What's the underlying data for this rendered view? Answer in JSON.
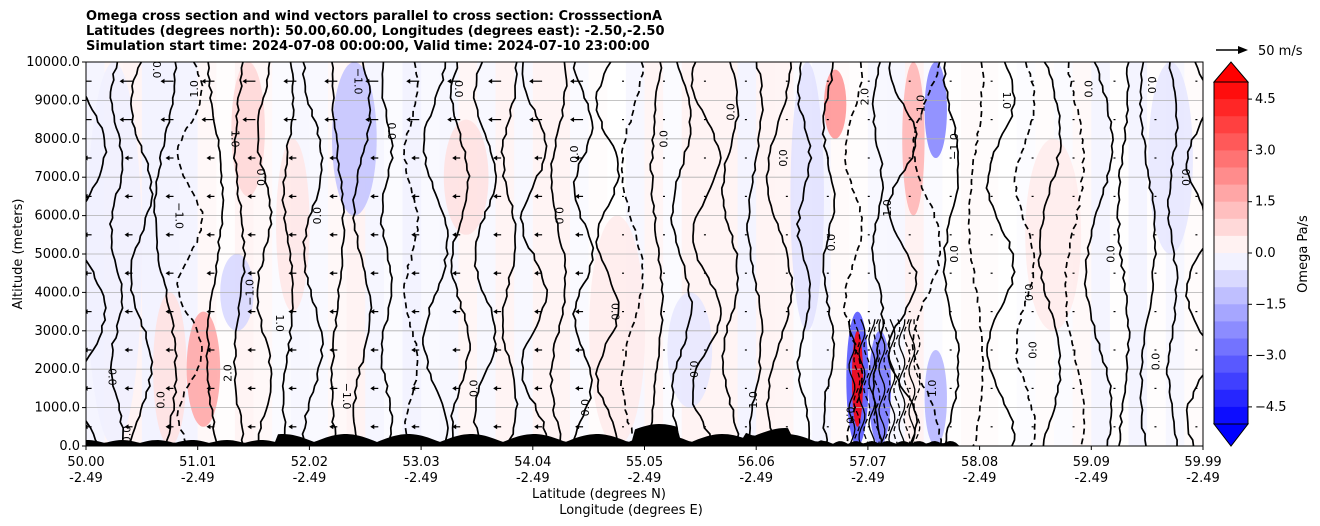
{
  "chart_data": {
    "type": "heatmap",
    "title_lines": [
      "Omega cross section and wind vectors parallel to cross section: CrosssectionA",
      "Latitudes (degrees north): 50.00,60.00, Longitudes (degrees east): -2.50,-2.50",
      "Simulation start time: 2024-07-08 00:00:00, Valid time: 2024-07-10 23:00:00"
    ],
    "ylabel": "Altitude (meters)",
    "xlabel_lines": [
      "Latitude (degrees N)",
      "Longitude (degrees E)"
    ],
    "ylim": [
      0,
      10000
    ],
    "y_ticks": [
      "0.0",
      "1000.0",
      "2000.0",
      "3000.0",
      "4000.0",
      "5000.0",
      "6000.0",
      "7000.0",
      "8000.0",
      "9000.0",
      "10000.0"
    ],
    "x_ticks": [
      {
        "lat": "50.00",
        "lon": "-2.49"
      },
      {
        "lat": "51.01",
        "lon": "-2.49"
      },
      {
        "lat": "52.02",
        "lon": "-2.49"
      },
      {
        "lat": "53.03",
        "lon": "-2.49"
      },
      {
        "lat": "54.04",
        "lon": "-2.49"
      },
      {
        "lat": "55.05",
        "lon": "-2.49"
      },
      {
        "lat": "56.06",
        "lon": "-2.49"
      },
      {
        "lat": "57.07",
        "lon": "-2.49"
      },
      {
        "lat": "58.08",
        "lon": "-2.49"
      },
      {
        "lat": "59.09",
        "lon": "-2.49"
      },
      {
        "lat": "59.99",
        "lon": "-2.49"
      }
    ],
    "colorbar": {
      "label": "Omega Pa/s",
      "ticks": [
        "4.5",
        "3.0",
        "1.5",
        "0.0",
        "−1.5",
        "−3.0",
        "−4.5"
      ],
      "range": [
        -5,
        5
      ],
      "low_color": "#0000ff",
      "high_color": "#ff0000"
    },
    "quiver_key": "50 m/s",
    "contour_labels": [
      "0.0",
      "1.0",
      "−1.0",
      "2.0",
      "−2.0"
    ],
    "regions": [
      {
        "x0": 50.0,
        "x1": 50.5,
        "y0": 0,
        "y1": 10000,
        "omega": -0.3
      },
      {
        "x0": 50.6,
        "x1": 50.9,
        "y0": 0,
        "y1": 4000,
        "omega": 0.6
      },
      {
        "x0": 50.9,
        "x1": 51.2,
        "y0": 500,
        "y1": 3500,
        "omega": 1.8
      },
      {
        "x0": 51.2,
        "x1": 51.5,
        "y0": 3000,
        "y1": 5000,
        "omega": -0.8
      },
      {
        "x0": 51.3,
        "x1": 51.6,
        "y0": 6500,
        "y1": 10000,
        "omega": 0.8
      },
      {
        "x0": 51.7,
        "x1": 52.0,
        "y0": 3500,
        "y1": 8000,
        "omega": 0.5
      },
      {
        "x0": 52.2,
        "x1": 52.6,
        "y0": 6000,
        "y1": 10000,
        "omega": -1.2
      },
      {
        "x0": 53.2,
        "x1": 53.6,
        "y0": 5500,
        "y1": 8500,
        "omega": 0.6
      },
      {
        "x0": 54.5,
        "x1": 55.0,
        "y0": 0,
        "y1": 6000,
        "omega": 0.4
      },
      {
        "x0": 55.2,
        "x1": 55.6,
        "y0": 1000,
        "y1": 4000,
        "omega": -0.5
      },
      {
        "x0": 56.3,
        "x1": 56.6,
        "y0": 3000,
        "y1": 10000,
        "omega": -0.6
      },
      {
        "x0": 56.6,
        "x1": 56.8,
        "y0": 8000,
        "y1": 9800,
        "omega": 2.2
      },
      {
        "x0": 56.8,
        "x1": 57.0,
        "y0": 0,
        "y1": 3500,
        "omega": -3.5
      },
      {
        "x0": 56.85,
        "x1": 56.95,
        "y0": 500,
        "y1": 3000,
        "omega": 5.0
      },
      {
        "x0": 57.0,
        "x1": 57.2,
        "y0": 0,
        "y1": 3000,
        "omega": -2.8
      },
      {
        "x0": 57.3,
        "x1": 57.5,
        "y0": 6000,
        "y1": 10000,
        "omega": 1.5
      },
      {
        "x0": 57.5,
        "x1": 57.7,
        "y0": 7500,
        "y1": 10000,
        "omega": -2.5
      },
      {
        "x0": 57.5,
        "x1": 57.7,
        "y0": 0,
        "y1": 2500,
        "omega": -1.5
      },
      {
        "x0": 58.4,
        "x1": 58.9,
        "y0": 3000,
        "y1": 8000,
        "omega": 0.4
      },
      {
        "x0": 59.5,
        "x1": 59.9,
        "y0": 5000,
        "y1": 10000,
        "omega": -0.5
      }
    ]
  }
}
